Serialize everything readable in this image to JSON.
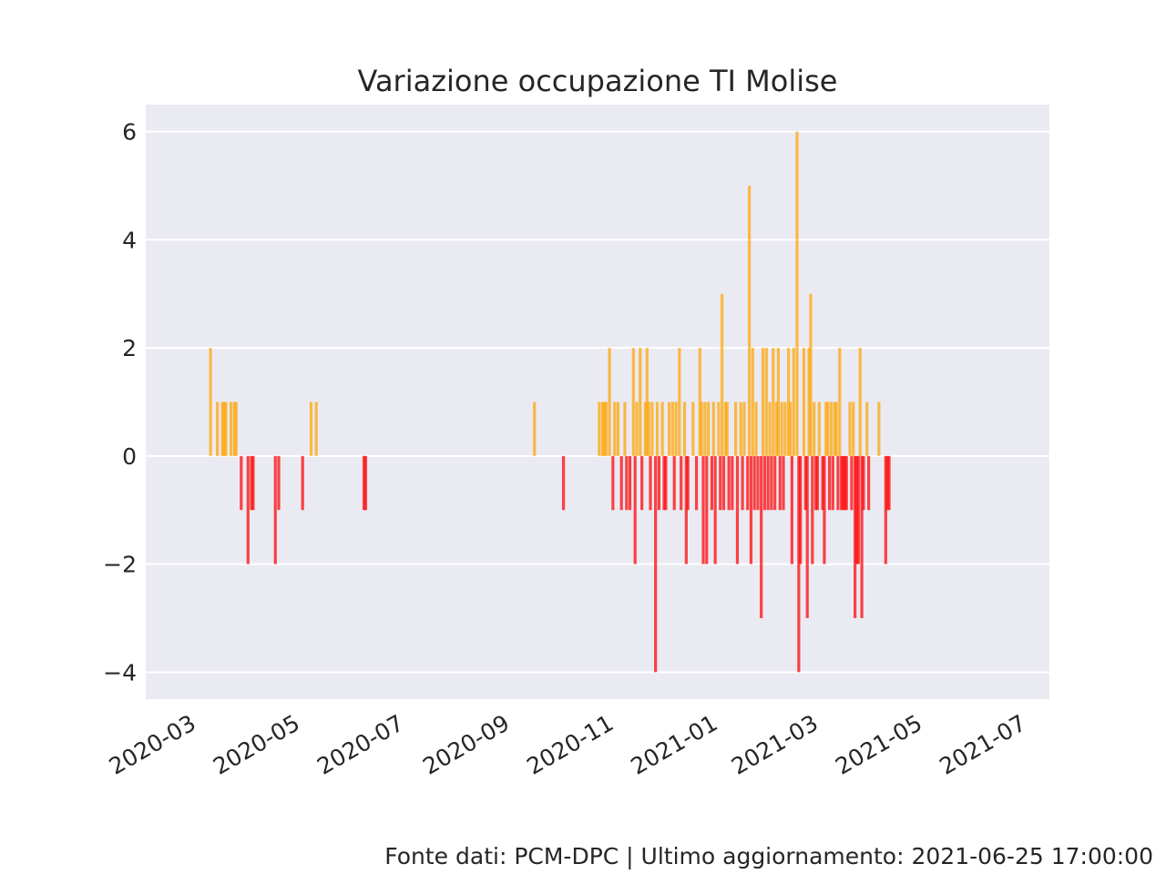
{
  "footer": "Fonte dati: PCM-DPC | Ultimo aggiornamento: 2021-06-25 17:00:00",
  "colors": {
    "background": "#eaeaf2",
    "grid": "#ffffff",
    "positive": "#ffa500",
    "negative": "#ff0000",
    "text": "#262626"
  },
  "chart_data": {
    "type": "bar",
    "title": "Variazione occupazione TI Molise",
    "xlabel": "",
    "ylabel": "",
    "grid": true,
    "ylim": [
      -4.5,
      6.5
    ],
    "yticks": [
      6,
      4,
      2,
      0,
      -2,
      -4
    ],
    "ytick_labels": [
      "6",
      "4",
      "2",
      "0",
      "−2",
      "−4"
    ],
    "xlim": [
      "2020-02-05",
      "2021-07-19"
    ],
    "xticks": [
      "2020-03-01",
      "2020-05-01",
      "2020-07-01",
      "2020-09-01",
      "2020-11-01",
      "2021-01-01",
      "2021-03-01",
      "2021-05-01",
      "2021-07-01"
    ],
    "xtick_labels": [
      "2020-03",
      "2020-05",
      "2020-07",
      "2020-09",
      "2020-11",
      "2021-01",
      "2021-03",
      "2021-05",
      "2021-07"
    ],
    "values_by_date": [
      [
        "2020-03-14",
        2
      ],
      [
        "2020-03-18",
        1
      ],
      [
        "2020-03-21",
        1
      ],
      [
        "2020-03-22",
        1
      ],
      [
        "2020-03-23",
        1
      ],
      [
        "2020-03-26",
        1
      ],
      [
        "2020-03-28",
        1
      ],
      [
        "2020-03-29",
        1
      ],
      [
        "2020-04-01",
        -1
      ],
      [
        "2020-04-05",
        -2
      ],
      [
        "2020-04-07",
        -1
      ],
      [
        "2020-04-08",
        -1
      ],
      [
        "2020-04-21",
        -2
      ],
      [
        "2020-04-23",
        -1
      ],
      [
        "2020-05-07",
        -1
      ],
      [
        "2020-05-12",
        1
      ],
      [
        "2020-05-15",
        1
      ],
      [
        "2020-06-12",
        -1
      ],
      [
        "2020-06-13",
        -1
      ],
      [
        "2020-09-20",
        1
      ],
      [
        "2020-10-07",
        -1
      ],
      [
        "2020-10-28",
        1
      ],
      [
        "2020-10-30",
        1
      ],
      [
        "2020-10-31",
        1
      ],
      [
        "2020-11-01",
        1
      ],
      [
        "2020-11-03",
        2
      ],
      [
        "2020-11-05",
        -1
      ],
      [
        "2020-11-06",
        1
      ],
      [
        "2020-11-08",
        1
      ],
      [
        "2020-11-10",
        -1
      ],
      [
        "2020-11-12",
        1
      ],
      [
        "2020-11-13",
        -1
      ],
      [
        "2020-11-15",
        -1
      ],
      [
        "2020-11-17",
        2
      ],
      [
        "2020-11-18",
        -2
      ],
      [
        "2020-11-19",
        1
      ],
      [
        "2020-11-21",
        2
      ],
      [
        "2020-11-22",
        -1
      ],
      [
        "2020-11-24",
        1
      ],
      [
        "2020-11-25",
        2
      ],
      [
        "2020-11-26",
        1
      ],
      [
        "2020-11-27",
        -1
      ],
      [
        "2020-11-28",
        1
      ],
      [
        "2020-11-30",
        -4
      ],
      [
        "2020-12-01",
        1
      ],
      [
        "2020-12-02",
        -1
      ],
      [
        "2020-12-04",
        1
      ],
      [
        "2020-12-05",
        -1
      ],
      [
        "2020-12-06",
        -1
      ],
      [
        "2020-12-08",
        1
      ],
      [
        "2020-12-10",
        1
      ],
      [
        "2020-12-11",
        -1
      ],
      [
        "2020-12-12",
        1
      ],
      [
        "2020-12-14",
        2
      ],
      [
        "2020-12-15",
        -1
      ],
      [
        "2020-12-17",
        1
      ],
      [
        "2020-12-18",
        -2
      ],
      [
        "2020-12-19",
        -1
      ],
      [
        "2020-12-22",
        1
      ],
      [
        "2020-12-24",
        -1
      ],
      [
        "2020-12-26",
        2
      ],
      [
        "2020-12-27",
        1
      ],
      [
        "2020-12-28",
        -2
      ],
      [
        "2020-12-29",
        1
      ],
      [
        "2020-12-30",
        -2
      ],
      [
        "2020-12-31",
        1
      ],
      [
        "2021-01-02",
        -1
      ],
      [
        "2021-01-03",
        1
      ],
      [
        "2021-01-04",
        -2
      ],
      [
        "2021-01-06",
        1
      ],
      [
        "2021-01-07",
        -1
      ],
      [
        "2021-01-08",
        3
      ],
      [
        "2021-01-09",
        -1
      ],
      [
        "2021-01-10",
        1
      ],
      [
        "2021-01-11",
        1
      ],
      [
        "2021-01-12",
        -1
      ],
      [
        "2021-01-14",
        -1
      ],
      [
        "2021-01-16",
        1
      ],
      [
        "2021-01-17",
        -2
      ],
      [
        "2021-01-19",
        1
      ],
      [
        "2021-01-20",
        -1
      ],
      [
        "2021-01-21",
        1
      ],
      [
        "2021-01-23",
        -1
      ],
      [
        "2021-01-24",
        5
      ],
      [
        "2021-01-25",
        -2
      ],
      [
        "2021-01-26",
        2
      ],
      [
        "2021-01-27",
        -1
      ],
      [
        "2021-01-28",
        1
      ],
      [
        "2021-01-29",
        -1
      ],
      [
        "2021-01-31",
        -3
      ],
      [
        "2021-02-01",
        2
      ],
      [
        "2021-02-02",
        -1
      ],
      [
        "2021-02-03",
        2
      ],
      [
        "2021-02-04",
        -1
      ],
      [
        "2021-02-05",
        1
      ],
      [
        "2021-02-06",
        -1
      ],
      [
        "2021-02-07",
        2
      ],
      [
        "2021-02-08",
        -1
      ],
      [
        "2021-02-09",
        1
      ],
      [
        "2021-02-10",
        2
      ],
      [
        "2021-02-11",
        -1
      ],
      [
        "2021-02-12",
        1
      ],
      [
        "2021-02-13",
        -1
      ],
      [
        "2021-02-14",
        1
      ],
      [
        "2021-02-16",
        2
      ],
      [
        "2021-02-17",
        1
      ],
      [
        "2021-02-18",
        -2
      ],
      [
        "2021-02-19",
        2
      ],
      [
        "2021-02-21",
        6
      ],
      [
        "2021-02-22",
        -4
      ],
      [
        "2021-02-23",
        -2
      ],
      [
        "2021-02-25",
        2
      ],
      [
        "2021-02-26",
        -1
      ],
      [
        "2021-02-27",
        -3
      ],
      [
        "2021-02-28",
        2
      ],
      [
        "2021-03-01",
        3
      ],
      [
        "2021-03-02",
        -2
      ],
      [
        "2021-03-03",
        1
      ],
      [
        "2021-03-04",
        -1
      ],
      [
        "2021-03-05",
        -1
      ],
      [
        "2021-03-06",
        1
      ],
      [
        "2021-03-08",
        -1
      ],
      [
        "2021-03-09",
        -2
      ],
      [
        "2021-03-10",
        1
      ],
      [
        "2021-03-11",
        1
      ],
      [
        "2021-03-12",
        -1
      ],
      [
        "2021-03-13",
        1
      ],
      [
        "2021-03-14",
        -1
      ],
      [
        "2021-03-15",
        1
      ],
      [
        "2021-03-16",
        1
      ],
      [
        "2021-03-17",
        -1
      ],
      [
        "2021-03-18",
        2
      ],
      [
        "2021-03-19",
        -1
      ],
      [
        "2021-03-20",
        -1
      ],
      [
        "2021-03-21",
        -1
      ],
      [
        "2021-03-22",
        -1
      ],
      [
        "2021-03-24",
        1
      ],
      [
        "2021-03-25",
        -1
      ],
      [
        "2021-03-26",
        1
      ],
      [
        "2021-03-27",
        -3
      ],
      [
        "2021-03-28",
        -2
      ],
      [
        "2021-03-29",
        -2
      ],
      [
        "2021-03-30",
        2
      ],
      [
        "2021-03-31",
        -3
      ],
      [
        "2021-04-01",
        -1
      ],
      [
        "2021-04-03",
        1
      ],
      [
        "2021-04-04",
        -1
      ],
      [
        "2021-04-10",
        1
      ],
      [
        "2021-04-14",
        -2
      ],
      [
        "2021-04-15",
        -1
      ],
      [
        "2021-04-16",
        -1
      ]
    ]
  }
}
